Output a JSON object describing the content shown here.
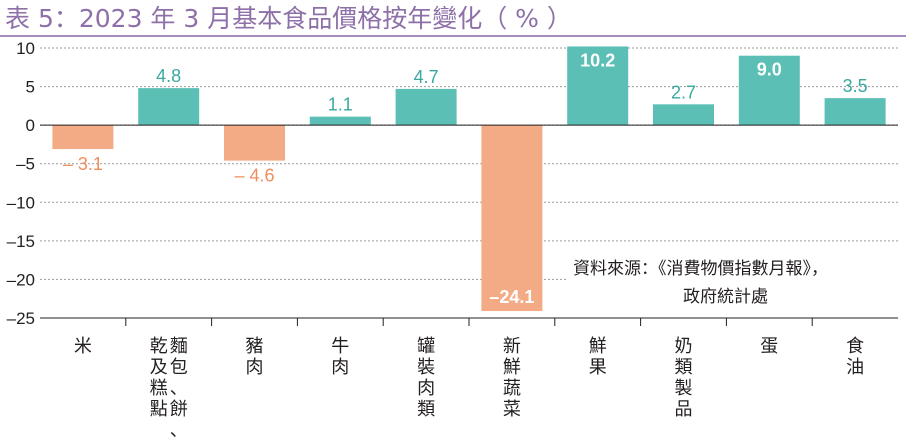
{
  "title": "表 5：2023 年 3 月基本食品價格按年變化（ % ）",
  "source": {
    "line1": "資料來源：《消費物價指數月報》，",
    "line2": "政府統計處"
  },
  "colors": {
    "title": "#8e70a8",
    "title_rule": "#a48cbd",
    "positive": "#5bbfb5",
    "negative": "#f2ab85",
    "positive_label": "#3aa9a0",
    "negative_label": "#ef8f5e",
    "inside_label": "#ffffff",
    "grid": "#9a9a9a",
    "axis": "#231f20"
  },
  "chart_data": {
    "type": "bar",
    "title": "表 5：2023 年 3 月基本食品價格按年變化（ % ）",
    "categories": [
      "米",
      "麵包、餅乾及糕點",
      "豬肉",
      "牛肉",
      "罐裝肉類",
      "新鮮蔬菜",
      "鮮果",
      "奶類製品",
      "蛋",
      "食油"
    ],
    "category_label_columns": [
      [
        "米"
      ],
      [
        "麵包、餅、",
        "乾及糕點"
      ],
      [
        "豬肉"
      ],
      [
        "牛肉"
      ],
      [
        "罐裝肉類"
      ],
      [
        "新鮮蔬菜"
      ],
      [
        "鮮果"
      ],
      [
        "奶類製品"
      ],
      [
        "蛋"
      ],
      [
        "食油"
      ]
    ],
    "values": [
      -3.1,
      4.8,
      -4.6,
      1.1,
      4.7,
      -24.1,
      10.2,
      2.7,
      9.0,
      3.5
    ],
    "value_labels": [
      "– 3.1",
      "4.8",
      "– 4.6",
      "1.1",
      "4.7",
      "–24.1",
      "10.2",
      "2.7",
      "9.0",
      "3.5"
    ],
    "label_inside": [
      false,
      false,
      false,
      false,
      false,
      true,
      true,
      false,
      true,
      false
    ],
    "ylim": [
      -25,
      10
    ],
    "yticks": [
      10,
      5,
      0,
      -5,
      -10,
      -15,
      -20,
      -25
    ],
    "ytick_labels": [
      "10",
      "5",
      "0",
      "–5",
      "–10",
      "–15",
      "–20",
      "–25"
    ],
    "xlabel": "",
    "ylabel": "",
    "grid": true
  }
}
